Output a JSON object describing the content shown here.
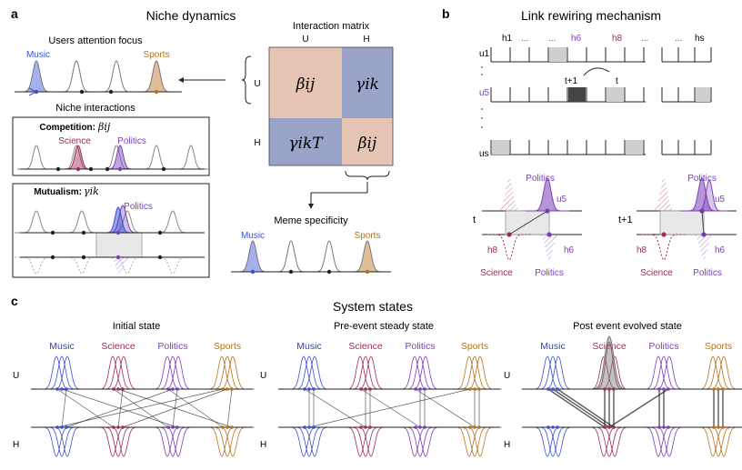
{
  "panel_a": {
    "letter": "a",
    "title": "Niche dynamics",
    "attention_title": "Users attention focus",
    "attention_left": "Music",
    "attention_right": "Sports",
    "niche_interactions": "Niche interactions",
    "competition_label": "Competition:",
    "competition_symbol": "βij",
    "competition_left": "Science",
    "competition_right": "Politics",
    "mutualism_label": "Mutualism:",
    "mutualism_symbol": "γik",
    "mutualism_niche": "Politics",
    "matrix_title": "Interaction matrix",
    "matrix_col_u": "U",
    "matrix_col_h": "H",
    "matrix_row_u": "U",
    "matrix_row_h": "H",
    "cell_uu": "βij",
    "cell_uh": "γik",
    "cell_hu": "γikT",
    "cell_hh": "βij",
    "meme_title": "Meme specificity",
    "meme_left": "Music",
    "meme_right": "Sports"
  },
  "panel_b": {
    "letter": "b",
    "title": "Link rewiring mechanism",
    "cols": [
      "h1",
      "h6",
      "h8",
      "hs"
    ],
    "rows": [
      "u1",
      "u5",
      "us"
    ],
    "dots": "...",
    "tplus1": "t+1",
    "t": "t",
    "bottom_left_time": "t",
    "bottom_right_time": "t+1",
    "politics": "Politics",
    "science": "Science",
    "u5": "u5",
    "h8": "h8",
    "h6": "h6"
  },
  "panel_c": {
    "letter": "c",
    "title": "System states",
    "states": [
      "Initial state",
      "Pre-event steady state",
      "Post event evolved state"
    ],
    "niches": [
      "Music",
      "Science",
      "Politics",
      "Sports"
    ],
    "row_u": "U",
    "row_h": "H"
  },
  "colors": {
    "music": "#3a4fd6",
    "science": "#a02b5a",
    "politics": "#7a3fb8",
    "sports": "#b5721c",
    "matrix_beta": "#e6c4b4",
    "matrix_gamma": "#9aa3c8"
  }
}
